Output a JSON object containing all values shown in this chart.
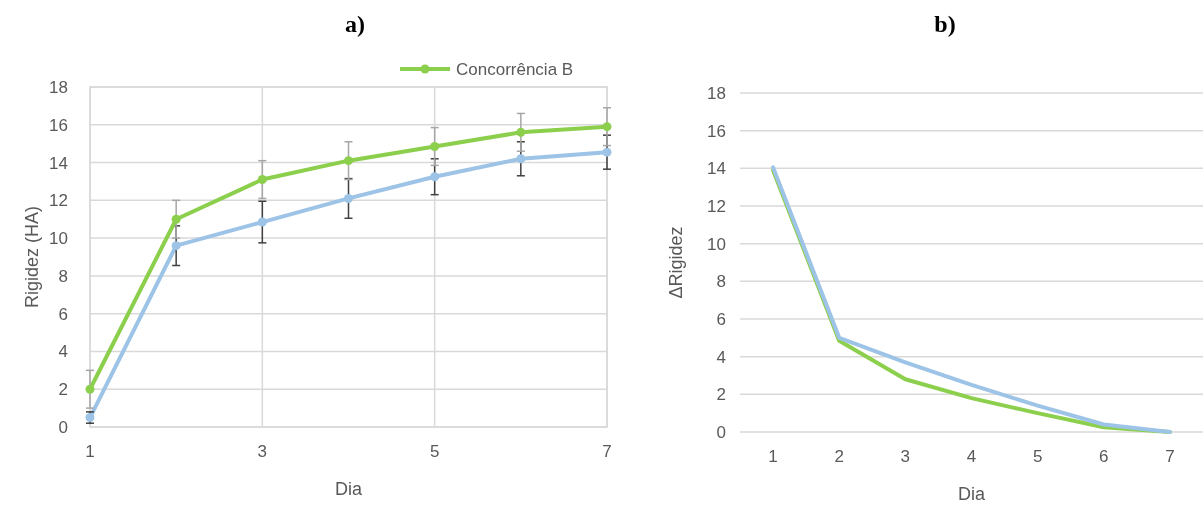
{
  "chart_data": [
    {
      "type": "line",
      "title": "a)",
      "xlabel": "Dia",
      "ylabel": "Rigidez (HA)",
      "x": [
        1,
        2,
        3,
        4,
        5,
        6,
        7
      ],
      "xlim": [
        1,
        7
      ],
      "xticks": [
        1,
        3,
        5,
        7
      ],
      "ylim": [
        0,
        18
      ],
      "yticks": [
        0,
        2,
        4,
        6,
        8,
        10,
        12,
        14,
        16,
        18
      ],
      "grid": true,
      "legend": "top",
      "marker": "circle",
      "line_style": "solid",
      "series": [
        {
          "color": "#9dc3e6",
          "values": [
            0.5,
            9.6,
            10.85,
            12.1,
            13.25,
            14.2,
            14.55
          ],
          "errors": [
            0.3,
            1.05,
            1.1,
            1.05,
            0.95,
            0.9,
            0.9
          ]
        },
        {
          "name": "Concorrência B",
          "color": "#8ccf4d",
          "values": [
            2.0,
            11.0,
            13.1,
            14.1,
            14.85,
            15.6,
            15.9
          ],
          "errors": [
            1,
            1,
            1,
            1,
            1,
            1,
            1
          ]
        }
      ]
    },
    {
      "type": "line",
      "title": "b)",
      "xlabel": "Dia",
      "ylabel": "ΔRigidez",
      "categories": [
        "1",
        "2",
        "3",
        "4",
        "5",
        "6",
        "7"
      ],
      "ylim": [
        0,
        18
      ],
      "yticks": [
        0,
        2,
        4,
        6,
        8,
        10,
        12,
        14,
        16,
        18
      ],
      "grid": "y",
      "line_style": "solid",
      "series": [
        {
          "color": "#8ccf4d",
          "values": [
            13.9,
            4.85,
            2.8,
            1.8,
            1.0,
            0.25,
            0.0
          ]
        },
        {
          "color": "#9dc3e6",
          "values": [
            14.05,
            5.0,
            3.7,
            2.5,
            1.4,
            0.4,
            0.0
          ]
        }
      ]
    }
  ]
}
